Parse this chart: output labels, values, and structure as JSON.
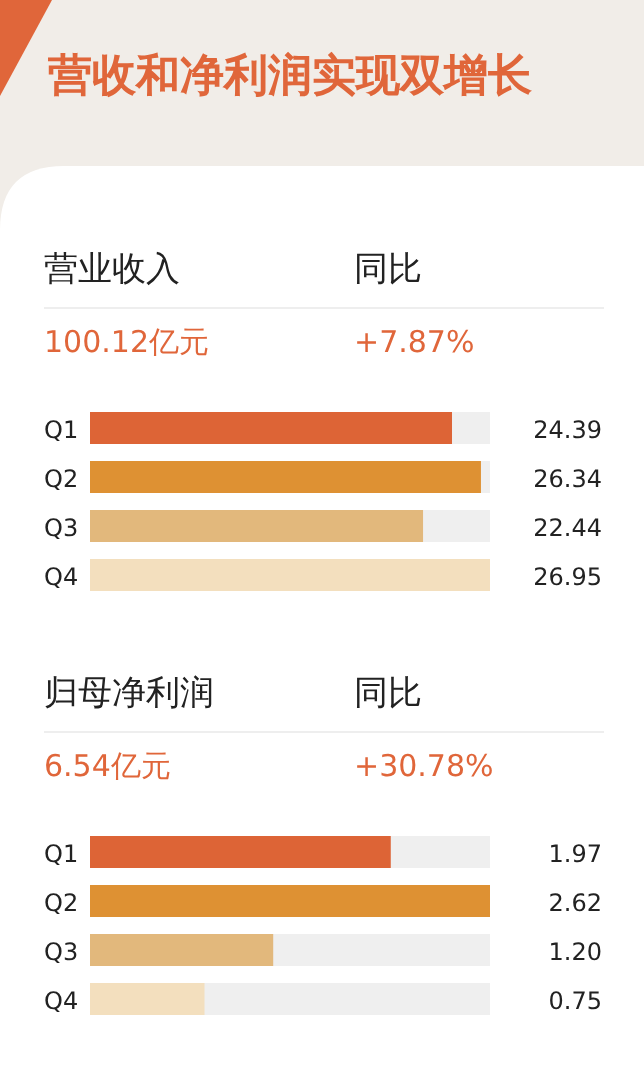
{
  "chart_data": [
    {
      "type": "bar",
      "orientation": "horizontal",
      "title": "营收和净利润实现双增长",
      "annotations": [
        "营业收入",
        "同比",
        "100.12亿元",
        "+7.87%"
      ],
      "categories": [
        "Q1",
        "Q2",
        "Q3",
        "Q4"
      ],
      "values": [
        24.39,
        26.34,
        22.44,
        26.95
      ],
      "value_labels": [
        "24.39",
        "26.34",
        "22.44",
        "26.95"
      ],
      "colors": [
        "#dd6436",
        "#de9133",
        "#e2b87c",
        "#f3dfbe"
      ]
    },
    {
      "type": "bar",
      "orientation": "horizontal",
      "annotations": [
        "归母净利润",
        "同比",
        "6.54亿元",
        "+30.78%"
      ],
      "categories": [
        "Q1",
        "Q2",
        "Q3",
        "Q4"
      ],
      "values": [
        1.97,
        2.62,
        1.2,
        0.75
      ],
      "value_labels": [
        "1.97",
        "2.62",
        "1.20",
        "0.75"
      ],
      "colors": [
        "#dd6436",
        "#de9133",
        "#e2b87c",
        "#f3dfbe"
      ]
    }
  ]
}
